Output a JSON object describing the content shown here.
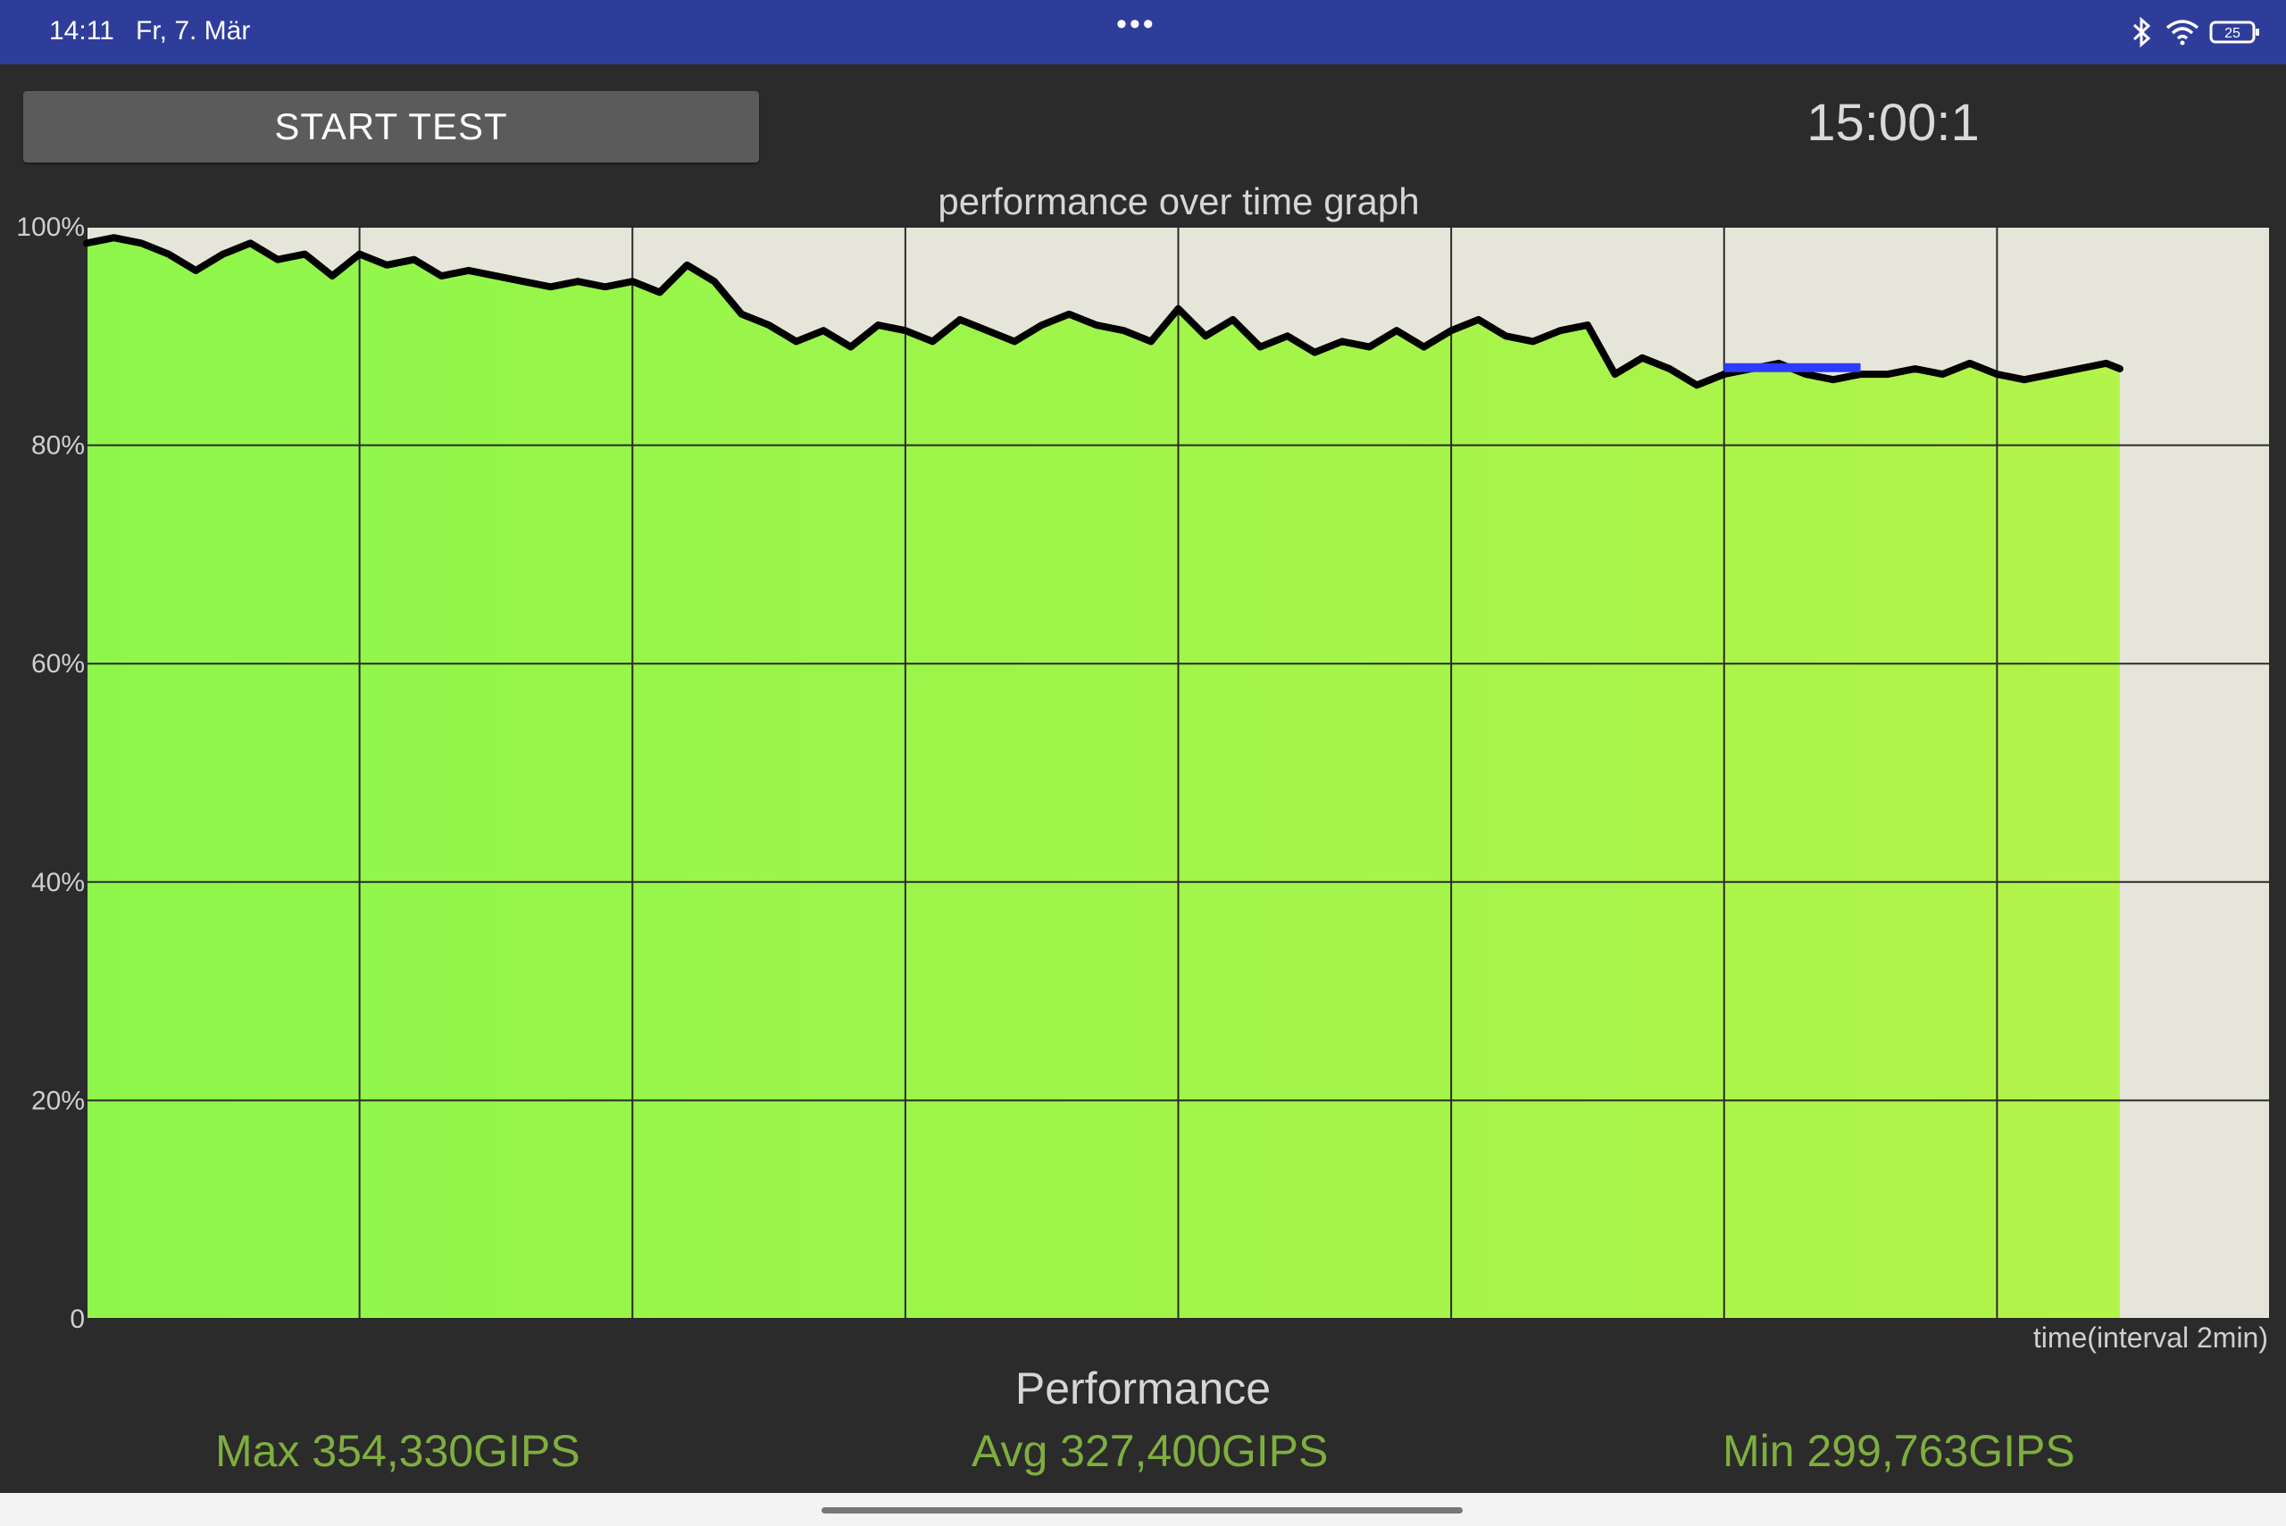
{
  "status_bar": {
    "time": "14:11",
    "date": "Fr, 7. Mär",
    "more_icon": "more-dots-icon",
    "icons": [
      "bluetooth-icon",
      "wifi-icon",
      "battery-icon"
    ],
    "battery_level": "25",
    "background": "#2f3d9a"
  },
  "controls": {
    "start_button_label": "START TEST",
    "timer": "15:00:1"
  },
  "performance": {
    "title": "Performance",
    "max": "Max 354,330GIPS",
    "avg": "Avg 327,400GIPS",
    "min": "Min 299,763GIPS",
    "stat_color": "#7fae3f"
  },
  "chart_data": {
    "type": "area",
    "title": "performance over time graph",
    "xlabel": "time(interval 2min)",
    "ylabel": "",
    "ylim": [
      0,
      100
    ],
    "xlim": [
      0,
      16
    ],
    "yticks": [
      "0",
      "20%",
      "40%",
      "60%",
      "80%",
      "100%"
    ],
    "grid": true,
    "colors": {
      "fill_start": "#8ef64a",
      "fill_end": "#b2f44a",
      "line": "#000000",
      "highlight": "#2b3cff",
      "background": "#e6e5da"
    },
    "highlight_segment": {
      "x": [
        12,
        13
      ],
      "y": 87.1
    },
    "series": [
      {
        "x": [
          0,
          0.2,
          0.4,
          0.6,
          0.8,
          1.0,
          1.2,
          1.4,
          1.6,
          1.8,
          2.0,
          2.2,
          2.4,
          2.6,
          2.8,
          3.0,
          3.2,
          3.4,
          3.6,
          3.8,
          4.0,
          4.2,
          4.4,
          4.6,
          4.8,
          5.0,
          5.2,
          5.4,
          5.6,
          5.8,
          6.0,
          6.2,
          6.4,
          6.6,
          6.8,
          7.0,
          7.2,
          7.4,
          7.6,
          7.8,
          8.0,
          8.2,
          8.4,
          8.6,
          8.8,
          9.0,
          9.2,
          9.4,
          9.6,
          9.8,
          10.0,
          10.2,
          10.4,
          10.6,
          10.8,
          11.0,
          11.2,
          11.4,
          11.6,
          11.8,
          12.0,
          12.2,
          12.4,
          12.6,
          12.8,
          13.0,
          13.2,
          13.4,
          13.6,
          13.8,
          14.0,
          14.2,
          14.4,
          14.6,
          14.8,
          14.9
        ],
        "values": [
          98.5,
          99,
          98.5,
          97.5,
          96,
          97.5,
          98.5,
          97,
          97.5,
          95.5,
          97.5,
          96.5,
          97,
          95.5,
          96,
          95.5,
          95,
          94.5,
          95,
          94.5,
          95,
          94,
          96.5,
          95,
          92,
          91,
          89.5,
          90.5,
          89,
          91,
          90.5,
          89.5,
          91.5,
          90.5,
          89.5,
          91,
          92,
          91,
          90.5,
          89.5,
          92.5,
          90,
          91.5,
          89,
          90,
          88.5,
          89.5,
          89,
          90.5,
          89,
          90.5,
          91.5,
          90,
          89.5,
          90.5,
          91,
          86.5,
          88,
          87,
          85.5,
          86.5,
          87,
          87.5,
          86.5,
          86,
          86.5,
          86.5,
          87,
          86.5,
          87.5,
          86.5,
          86,
          86.5,
          87,
          87.5,
          87
        ]
      }
    ]
  }
}
